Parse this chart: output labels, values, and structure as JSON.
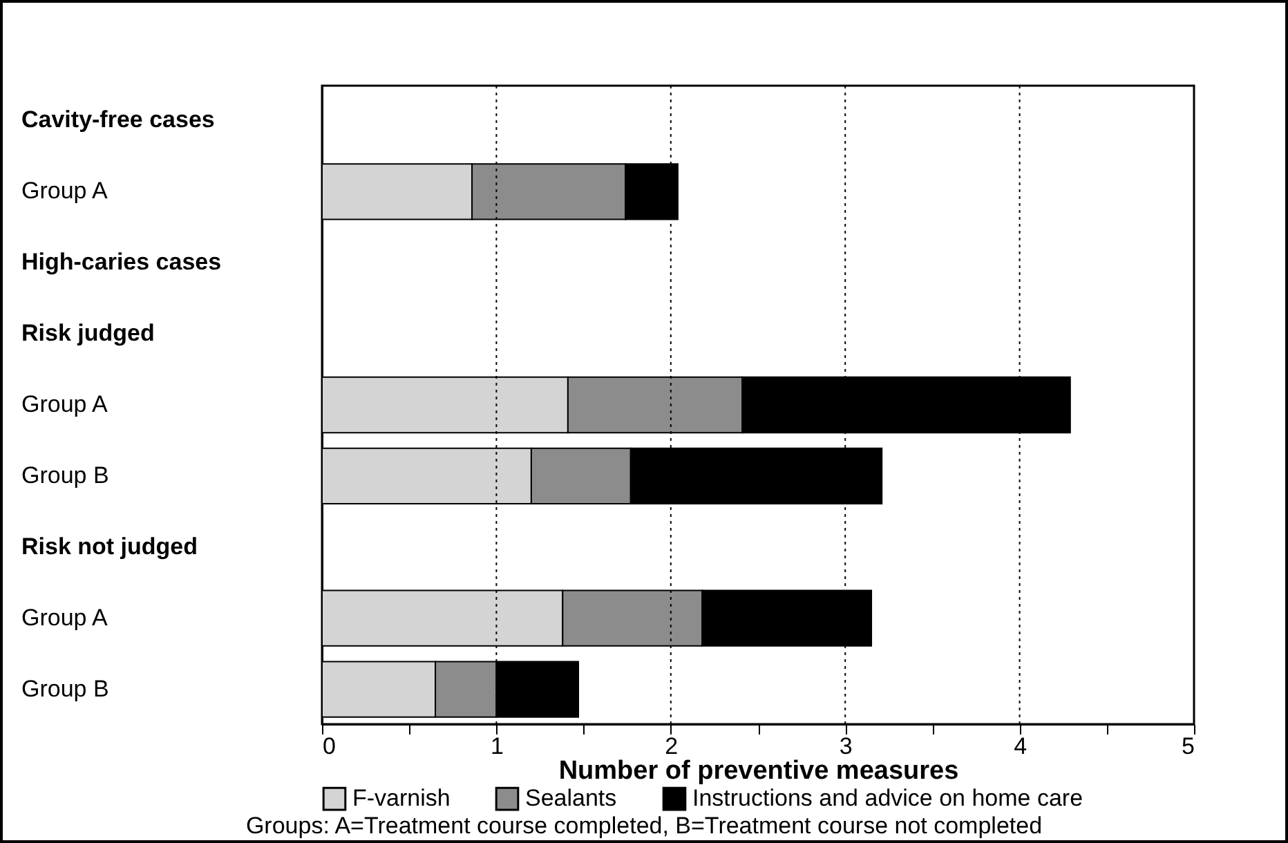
{
  "chart_data": {
    "type": "bar",
    "orientation": "horizontal",
    "stacked": true,
    "categories": [
      "Cavity-free cases",
      "Group A",
      "High-caries cases",
      "Risk judged",
      "Group A",
      "Group B",
      "Risk not judged",
      "Group A",
      "Group B"
    ],
    "series": [
      {
        "name": "F-varnish",
        "color": "#d4d4d4",
        "values": [
          null,
          0.86,
          null,
          null,
          1.41,
          1.2,
          null,
          1.38,
          0.65
        ]
      },
      {
        "name": "Sealants",
        "color": "#8c8c8c",
        "values": [
          null,
          0.88,
          null,
          null,
          1.0,
          0.57,
          null,
          0.8,
          0.35
        ]
      },
      {
        "name": "Instructions and advice on home care",
        "color": "#000000",
        "values": [
          null,
          0.3,
          null,
          null,
          1.88,
          1.44,
          null,
          0.97,
          0.47
        ]
      }
    ],
    "xlabel": "Number of preventive measures",
    "xlim": [
      0,
      5
    ],
    "xticks": [
      0,
      {
        "value": 0.5,
        "label": null
      },
      1,
      {
        "value": 1.5,
        "label": null
      },
      2,
      {
        "value": 2.5,
        "label": null
      },
      3,
      {
        "value": 3.5,
        "label": null
      },
      4,
      {
        "value": 4.5,
        "label": null
      },
      5
    ],
    "grid": "x",
    "legend": "bottom",
    "annotations": [
      "Groups: A=Treatment course completed, B=Treatment course not completed"
    ]
  }
}
